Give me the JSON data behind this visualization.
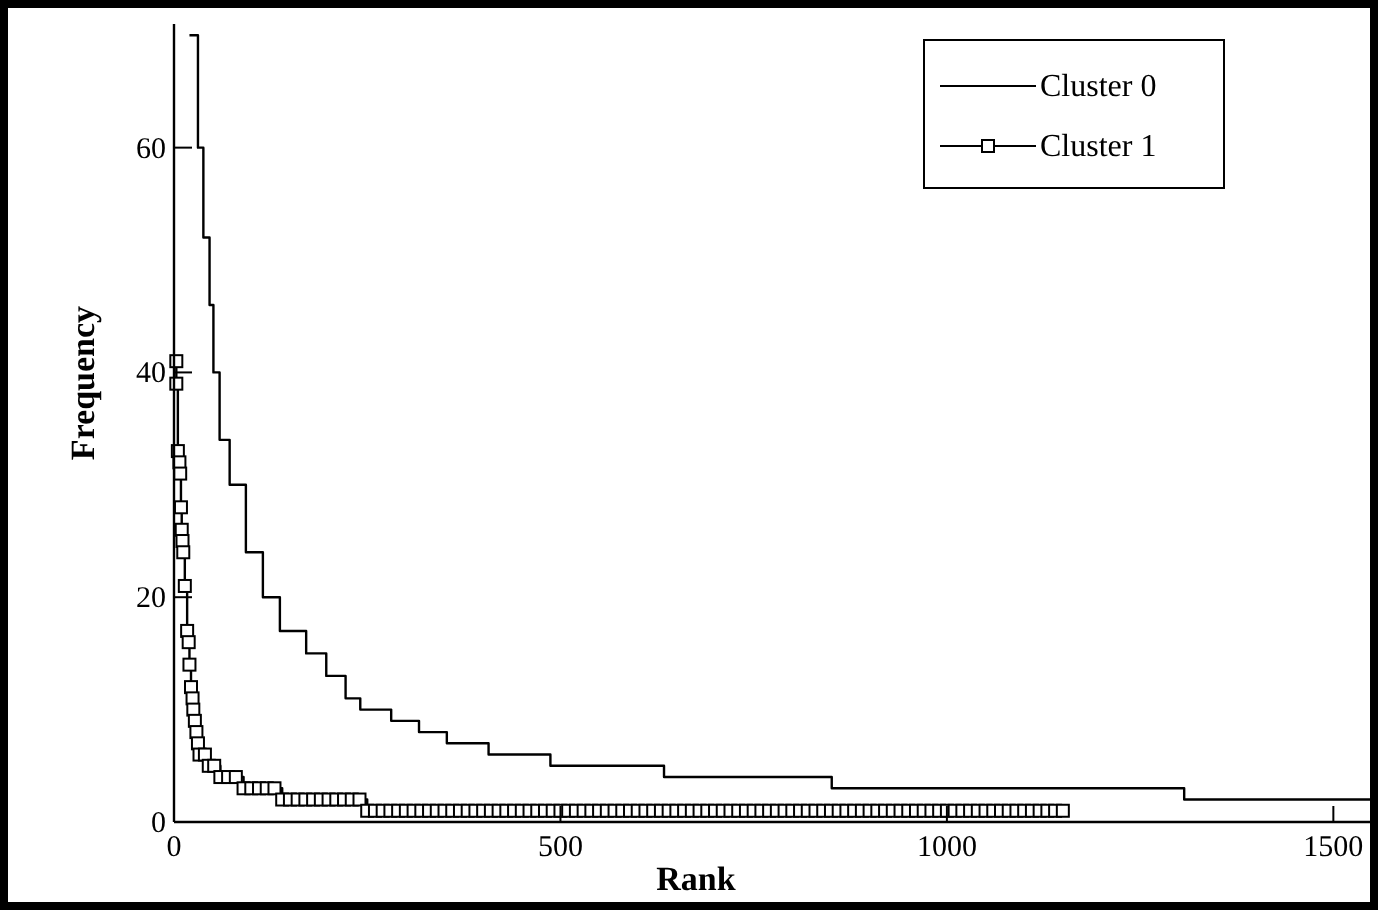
{
  "chart_data": {
    "type": "step",
    "xlabel": "Rank",
    "ylabel": "Frequency",
    "xlim": [
      0,
      1550
    ],
    "ylim": [
      0,
      71
    ],
    "xticks": [
      0,
      500,
      1000,
      1500
    ],
    "yticks": [
      0,
      20,
      40,
      60
    ],
    "legend": "top right",
    "series": [
      {
        "name": "Cluster 0",
        "color": "#000000",
        "marker": "none",
        "x": [
          20,
          31,
          38,
          46,
          51,
          59,
          72,
          93,
          115,
          137,
          171,
          197,
          222,
          241,
          281,
          317,
          353,
          407,
          487,
          634,
          851,
          1307,
          1550
        ],
        "values": [
          70,
          60,
          52,
          46,
          40,
          34,
          30,
          24,
          20,
          17,
          15,
          13,
          11,
          10,
          9,
          8,
          7,
          6,
          5,
          4,
          3,
          2,
          2
        ]
      },
      {
        "name": "Cluster 1",
        "color": "#000000",
        "marker": "square",
        "x": [
          3,
          3,
          5,
          7,
          8,
          9,
          10,
          11,
          12,
          14,
          17,
          19,
          20,
          22,
          24,
          25,
          27,
          29,
          31,
          33,
          40,
          45,
          52,
          60,
          70,
          80,
          90,
          100,
          110,
          120,
          130,
          140,
          150,
          160,
          170,
          180,
          190,
          200,
          210,
          220,
          230,
          240,
          250,
          260,
          270,
          280,
          290,
          300,
          310,
          320,
          330,
          340,
          350,
          360,
          370,
          380,
          390,
          400,
          410,
          420,
          430,
          440,
          450,
          460,
          470,
          480,
          490,
          500,
          510,
          520,
          530,
          540,
          550,
          560,
          570,
          580,
          590,
          600,
          610,
          620,
          630,
          640,
          650,
          660,
          670,
          680,
          690,
          700,
          710,
          720,
          730,
          740,
          750,
          760,
          770,
          780,
          790,
          800,
          810,
          820,
          830,
          840,
          850,
          860,
          870,
          880,
          890,
          900,
          910,
          920,
          930,
          940,
          950,
          960,
          970,
          980,
          990,
          1000,
          1010,
          1020,
          1030,
          1040,
          1050,
          1060,
          1070,
          1080,
          1090,
          1100,
          1110,
          1120,
          1130,
          1140,
          1150
        ],
        "values": [
          41,
          39,
          33,
          32,
          31,
          28,
          26,
          25,
          24,
          21,
          17,
          16,
          14,
          12,
          11,
          10,
          9,
          8,
          7,
          6,
          6,
          5,
          5,
          4,
          4,
          4,
          3,
          3,
          3,
          3,
          3,
          2,
          2,
          2,
          2,
          2,
          2,
          2,
          2,
          2,
          2,
          2,
          1,
          1,
          1,
          1,
          1,
          1,
          1,
          1,
          1,
          1,
          1,
          1,
          1,
          1,
          1,
          1,
          1,
          1,
          1,
          1,
          1,
          1,
          1,
          1,
          1,
          1,
          1,
          1,
          1,
          1,
          1,
          1,
          1,
          1,
          1,
          1,
          1,
          1,
          1,
          1,
          1,
          1,
          1,
          1,
          1,
          1,
          1,
          1,
          1,
          1,
          1,
          1,
          1,
          1,
          1,
          1,
          1,
          1,
          1,
          1,
          1,
          1,
          1,
          1,
          1,
          1,
          1,
          1,
          1,
          1,
          1,
          1,
          1,
          1,
          1,
          1,
          1,
          1,
          1,
          1,
          1,
          1,
          1,
          1,
          1,
          1,
          1,
          1,
          1,
          1,
          1
        ]
      }
    ]
  }
}
